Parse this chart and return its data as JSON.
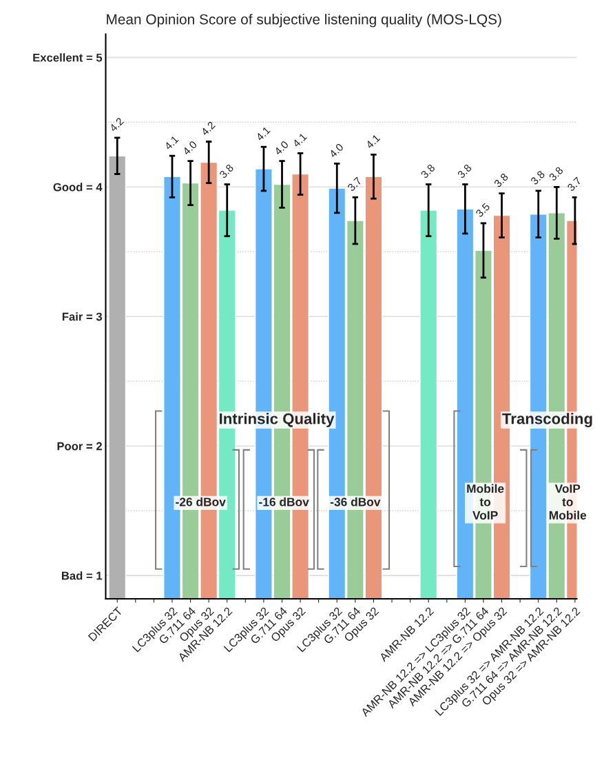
{
  "chart_data": {
    "type": "bar",
    "title": "Mean Opinion Score of subjective listening quality (MOS-LQS)",
    "categories": [
      "DIRECT",
      null,
      null,
      "LC3plus 32",
      "G.711 64",
      "Opus 32",
      "AMR-NB 12.2",
      null,
      "LC3plus 32",
      "G.711 64",
      "Opus 32",
      null,
      "LC3plus 32",
      "G.711 64",
      "Opus 32",
      null,
      null,
      "AMR-NB 12.2",
      null,
      "AMR-NB 12.2 => LC3plus 32",
      "AMR-NB 12.2 => G.711 64",
      "AMR-NB 12.2 => Opus 32",
      null,
      "LC3plus 32 => AMR-NB 12.2",
      "G.711 64 => AMR-NB 12.2",
      "Opus 32 => AMR-NB 12.2"
    ],
    "values": [
      4.24,
      null,
      null,
      4.08,
      4.03,
      4.19,
      3.82,
      null,
      4.14,
      4.02,
      4.1,
      null,
      3.99,
      3.74,
      4.08,
      null,
      null,
      3.82,
      null,
      3.83,
      3.51,
      3.78,
      null,
      3.79,
      3.8,
      3.74
    ],
    "errors": [
      0.14,
      null,
      null,
      0.16,
      0.17,
      0.16,
      0.2,
      null,
      0.17,
      0.18,
      0.16,
      null,
      0.19,
      0.18,
      0.17,
      null,
      null,
      0.2,
      null,
      0.19,
      0.21,
      0.17,
      null,
      0.18,
      0.2,
      0.18
    ],
    "value_labels": [
      "4.2",
      null,
      null,
      "4.1",
      "4.0",
      "4.2",
      "3.8",
      null,
      "4.1",
      "4.0",
      "4.1",
      null,
      "4.0",
      "3.7",
      "4.1",
      null,
      null,
      "3.8",
      null,
      "3.8",
      "3.5",
      "3.8",
      null,
      "3.8",
      "3.8",
      "3.7"
    ],
    "colors": [
      "#b0b0b0",
      "#ffffff",
      "#ffffff",
      "#62b4f9",
      "#99cc99",
      "#e9967a",
      "#74e9c4",
      "#ffffff",
      "#62b4f9",
      "#99cc99",
      "#e9967a",
      "#ffffff",
      "#62b4f9",
      "#99cc99",
      "#e9967a",
      "#ffffff",
      "#ffffff",
      "#74e9c4",
      "#ffffff",
      "#62b4f9",
      "#99cc99",
      "#e9967a",
      "#ffffff",
      "#62b4f9",
      "#99cc99",
      "#e9967a"
    ],
    "ylim": [
      0.82,
      5.18
    ],
    "yticks": [
      {
        "value": 1,
        "label": "Bad = 1"
      },
      {
        "value": 2,
        "label": "Poor = 2"
      },
      {
        "value": 3,
        "label": "Fair = 3"
      },
      {
        "value": 4,
        "label": "Good = 4"
      },
      {
        "value": 5,
        "label": "Excellent = 5"
      }
    ],
    "grid": "y",
    "ref_lines": [
      {
        "axis": "y",
        "value": 1.5,
        "line_style": "dotted",
        "color": "#cccccc"
      },
      {
        "axis": "y",
        "value": 2.5,
        "line_style": "dotted",
        "color": "#cccccc"
      },
      {
        "axis": "y",
        "value": 3.5,
        "line_style": "dotted",
        "color": "#cccccc"
      },
      {
        "axis": "y",
        "value": 4.5,
        "line_style": "dotted",
        "color": "#cccccc"
      }
    ],
    "annotations": [
      "Intrinsic Quality",
      "Transcoding",
      "-26 dBov",
      "-16 dBov",
      "-36 dBov",
      "Mobile\nto\nVoIP",
      "VoIP\nto\nMobile"
    ]
  }
}
